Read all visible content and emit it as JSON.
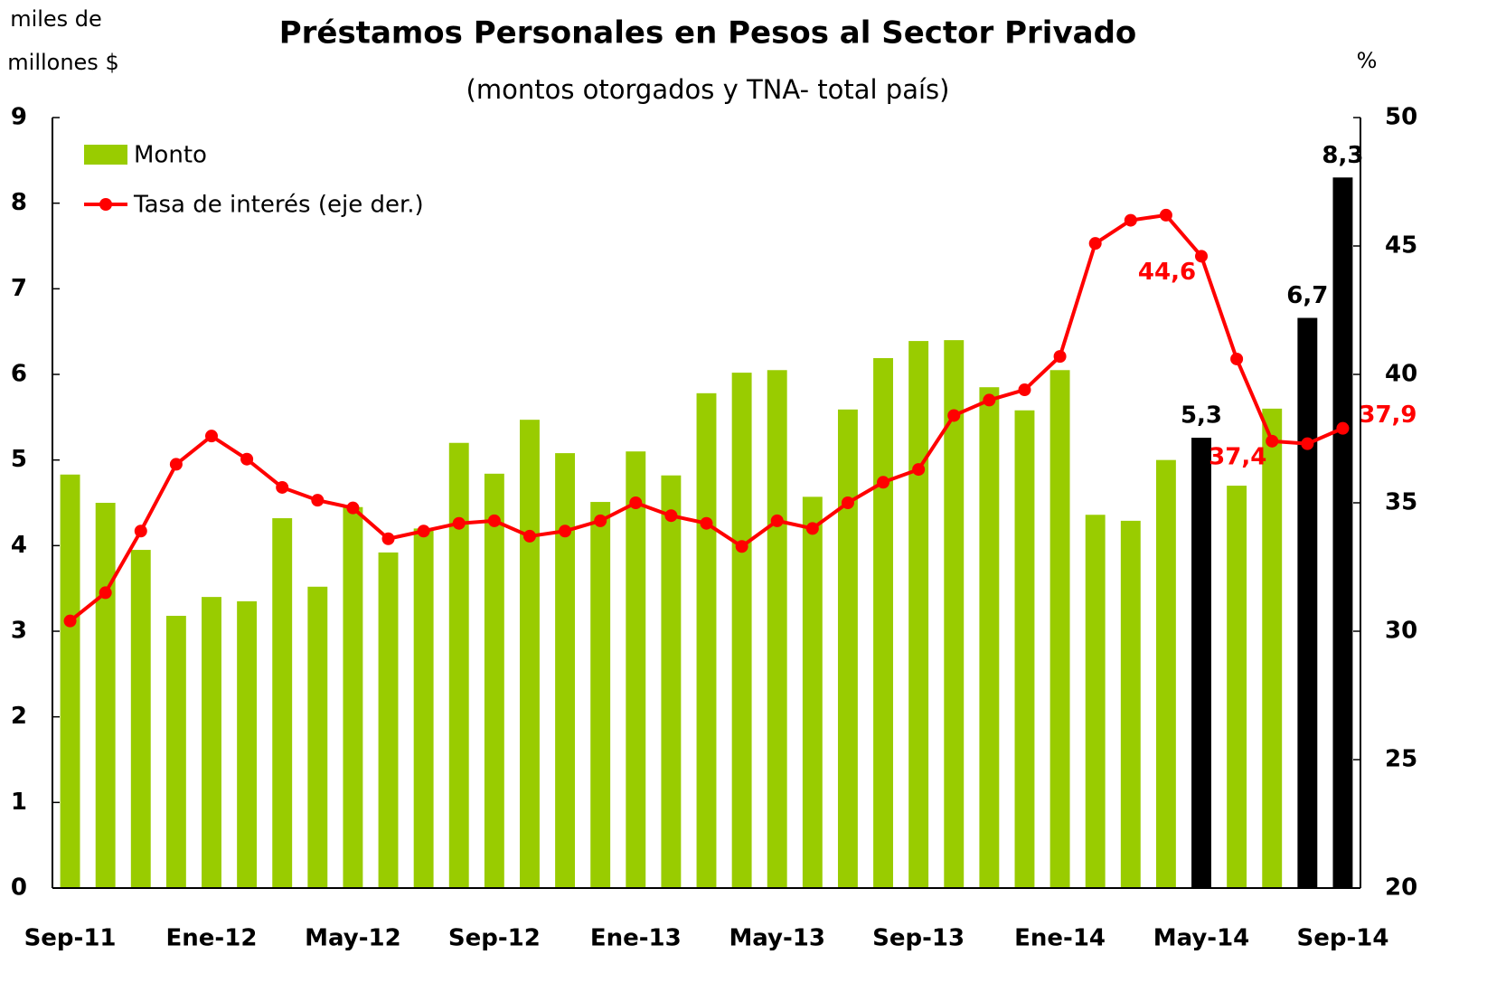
{
  "chart_data": {
    "type": "bar_line",
    "title": "Préstamos Personales en Pesos al Sector Privado",
    "subtitle": "(montos otorgados y TNA- total país)",
    "y_label": [
      "miles de",
      "millones $"
    ],
    "y2_label": "%",
    "categories": [
      "Sep-11",
      null,
      null,
      null,
      "Ene-12",
      null,
      null,
      null,
      "May-12",
      null,
      null,
      null,
      "Sep-12",
      null,
      null,
      null,
      "Ene-13",
      null,
      null,
      null,
      "May-13",
      null,
      null,
      null,
      "Sep-13",
      null,
      null,
      null,
      "Ene-14",
      null,
      null,
      null,
      "May-14",
      null,
      null,
      null,
      "Sep-14"
    ],
    "series": [
      {
        "name": "Monto",
        "type": "bar",
        "color": "#99cc00",
        "colors": [
          "#99cc00",
          "#99cc00",
          "#99cc00",
          "#99cc00",
          "#99cc00",
          "#99cc00",
          "#99cc00",
          "#99cc00",
          "#99cc00",
          "#99cc00",
          "#99cc00",
          "#99cc00",
          "#99cc00",
          "#99cc00",
          "#99cc00",
          "#99cc00",
          "#99cc00",
          "#99cc00",
          "#99cc00",
          "#99cc00",
          "#99cc00",
          "#99cc00",
          "#99cc00",
          "#99cc00",
          "#99cc00",
          "#99cc00",
          "#99cc00",
          "#99cc00",
          "#99cc00",
          "#99cc00",
          "#99cc00",
          "#99cc00",
          "#000000",
          "#99cc00",
          "#99cc00",
          "#000000",
          "#000000"
        ],
        "values": [
          4.83,
          4.5,
          3.95,
          3.18,
          3.4,
          3.35,
          4.32,
          3.52,
          4.45,
          3.92,
          4.2,
          5.2,
          4.84,
          5.47,
          5.08,
          4.51,
          5.1,
          4.82,
          5.78,
          6.02,
          6.05,
          4.57,
          5.59,
          6.19,
          6.39,
          6.4,
          5.85,
          5.58,
          6.05,
          4.36,
          4.29,
          5.0,
          5.26,
          4.7,
          5.6,
          6.66,
          8.3
        ],
        "value_labels": [
          null,
          null,
          null,
          null,
          null,
          null,
          null,
          null,
          null,
          null,
          null,
          null,
          null,
          null,
          null,
          null,
          null,
          null,
          null,
          null,
          null,
          null,
          null,
          null,
          null,
          null,
          null,
          null,
          null,
          null,
          null,
          null,
          "5,3",
          null,
          null,
          "6,7",
          "8,3"
        ]
      },
      {
        "name": "Tasa de interés (eje der.)",
        "type": "line",
        "axis": "y2",
        "color": "#ff0000",
        "values": [
          30.4,
          31.5,
          33.9,
          36.5,
          37.6,
          36.7,
          35.6,
          35.1,
          34.8,
          33.6,
          33.9,
          34.2,
          34.3,
          33.7,
          33.9,
          34.3,
          35.0,
          34.5,
          34.2,
          33.3,
          34.3,
          34.0,
          35.0,
          35.8,
          36.3,
          38.4,
          39.0,
          39.4,
          40.7,
          45.1,
          46.0,
          46.2,
          44.6,
          40.6,
          37.4,
          37.3,
          37.9
        ],
        "value_labels": [
          null,
          null,
          null,
          null,
          null,
          null,
          null,
          null,
          null,
          null,
          null,
          null,
          null,
          null,
          null,
          null,
          null,
          null,
          null,
          null,
          null,
          null,
          null,
          null,
          null,
          null,
          null,
          null,
          null,
          null,
          null,
          null,
          "44,6",
          null,
          "37,4",
          null,
          "37,9"
        ]
      }
    ],
    "ylim": [
      0,
      9
    ],
    "yticks": [
      0,
      1,
      2,
      3,
      4,
      5,
      6,
      7,
      8,
      9
    ],
    "y2lim": [
      20,
      50
    ],
    "y2ticks": [
      20,
      25,
      30,
      35,
      40,
      45,
      50
    ],
    "legend": "top-left"
  }
}
